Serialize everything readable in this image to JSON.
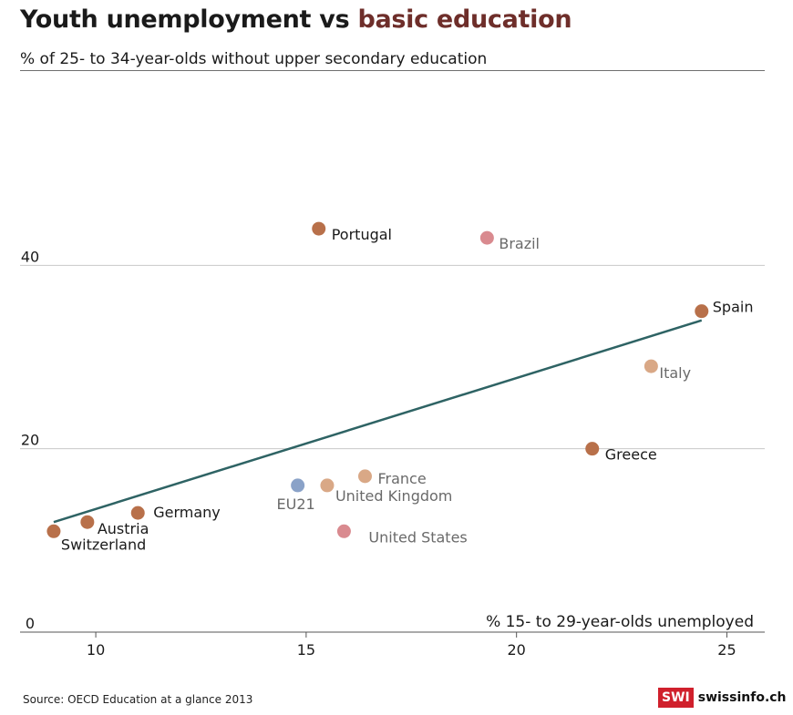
{
  "header": {
    "title_main": "Youth unemployment vs ",
    "title_accent": "basic education",
    "subtitle": "% of 25- to 34-year-olds without upper secondary education"
  },
  "footer": {
    "source": "Source: OECD Education at a glance 2013",
    "brand_mark": "SWI",
    "brand_name": "swissinfo.ch"
  },
  "colors": {
    "europe": "#b8704a",
    "non_europe": "#d98a8f",
    "light": "#d9a886",
    "eu21": "#8aa2c8",
    "trend": "#2e6364",
    "grid": "#c8c8c8",
    "label_dark": "#1a1a1a",
    "label_muted": "#6a6a6a"
  },
  "chart_data": {
    "type": "scatter",
    "xlabel": "% 15- to 29-year-olds unemployed",
    "ylabel": "% of 25- to 34-year-olds without upper secondary education",
    "xlim": [
      8.2,
      25.9
    ],
    "ylim": [
      0,
      60
    ],
    "x_ticks": [
      10,
      15,
      20,
      25
    ],
    "y_ticks": [
      0,
      20,
      40
    ],
    "grid": "horizontal",
    "points": [
      {
        "label": "Portugal",
        "x": 15.3,
        "y": 44,
        "color": "europe",
        "label_style": "dark"
      },
      {
        "label": "Brazil",
        "x": 19.3,
        "y": 43,
        "color": "non_europe",
        "label_style": "muted"
      },
      {
        "label": "Spain",
        "x": 24.4,
        "y": 35,
        "color": "europe",
        "label_style": "dark"
      },
      {
        "label": "Italy",
        "x": 23.2,
        "y": 29,
        "color": "light",
        "label_style": "muted"
      },
      {
        "label": "Greece",
        "x": 21.8,
        "y": 20,
        "color": "europe",
        "label_style": "dark"
      },
      {
        "label": "France",
        "x": 16.4,
        "y": 17,
        "color": "light",
        "label_style": "muted"
      },
      {
        "label": "United Kingdom",
        "x": 15.5,
        "y": 16,
        "color": "light",
        "label_style": "muted"
      },
      {
        "label": "EU21",
        "x": 14.8,
        "y": 16,
        "color": "eu21",
        "label_style": "muted"
      },
      {
        "label": "United States",
        "x": 15.9,
        "y": 11,
        "color": "non_europe",
        "label_style": "muted"
      },
      {
        "label": "Germany",
        "x": 11.0,
        "y": 13,
        "color": "europe",
        "label_style": "dark"
      },
      {
        "label": "Austria",
        "x": 9.8,
        "y": 12,
        "color": "europe",
        "label_style": "dark"
      },
      {
        "label": "Switzerland",
        "x": 9.0,
        "y": 11,
        "color": "europe",
        "label_style": "dark"
      }
    ],
    "trendline": {
      "x": [
        9.0,
        24.4
      ],
      "y": [
        12,
        34
      ]
    }
  }
}
